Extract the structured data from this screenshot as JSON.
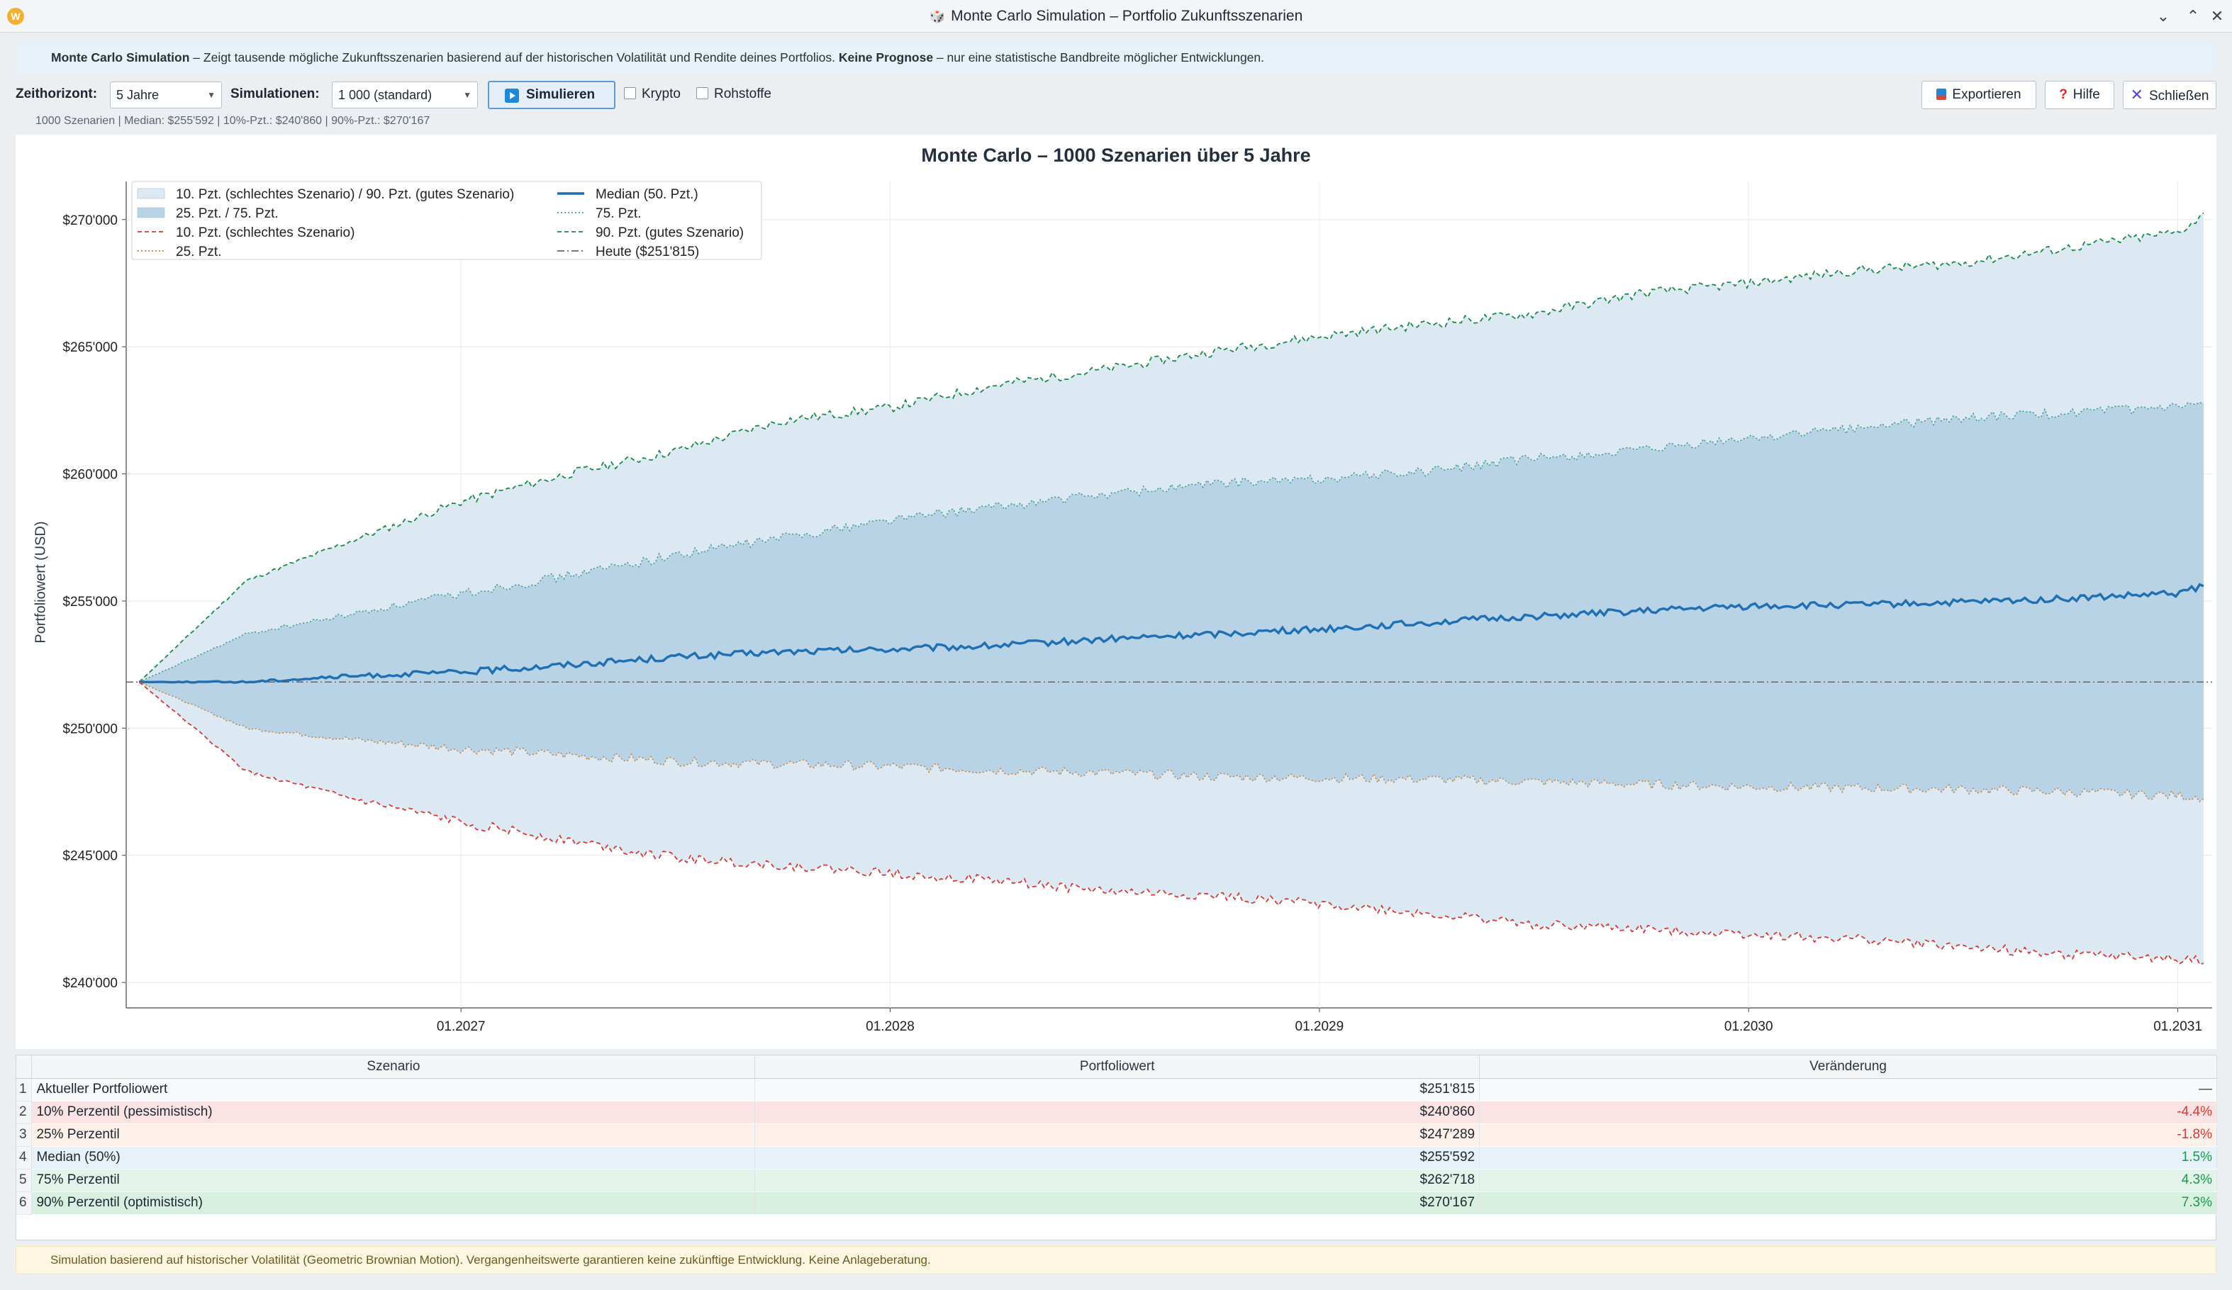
{
  "window": {
    "title": "Monte Carlo Simulation – Portfolio Zukunftsszenarien",
    "title_glyph": "🎲"
  },
  "infobar": {
    "bold1": "Monte Carlo Simulation",
    "text1": " – Zeigt tausende mögliche Zukunftsszenarien basierend auf der historischen Volatilität und Rendite deines Portfolios. ",
    "bold2": "Keine Prognose",
    "text2": " – nur eine statistische Bandbreite möglicher Entwicklungen."
  },
  "toolbar": {
    "horizon_label": "Zeithorizont:",
    "horizon_value": "5 Jahre",
    "sims_label": "Simulationen:",
    "sims_value": "1 000 (standard)",
    "simulate_label": "Simulieren",
    "crypto_label": "Krypto",
    "commodities_label": "Rohstoffe",
    "export_label": "Exportieren",
    "help_label": "Hilfe",
    "close_label": "Schließen"
  },
  "stats_line": "1000 Szenarien | Median: $255'592 | 10%-Pzt.: $240'860 | 90%-Pzt.: $270'167",
  "chart_data": {
    "type": "area",
    "title": "Monte Carlo – 1000 Szenarien über 5 Jahre",
    "xlabel": "",
    "ylabel": "Portfoliowert (USD)",
    "xlim": [
      2026.22,
      2031.08
    ],
    "ylim": [
      239000,
      271500
    ],
    "x_ticks": [
      {
        "value": 2027,
        "label": "01.2027"
      },
      {
        "value": 2028,
        "label": "01.2028"
      },
      {
        "value": 2029,
        "label": "01.2029"
      },
      {
        "value": 2030,
        "label": "01.2030"
      },
      {
        "value": 2031,
        "label": "01.2031"
      }
    ],
    "y_ticks": [
      {
        "value": 240000,
        "label": "$240'000"
      },
      {
        "value": 245000,
        "label": "$245'000"
      },
      {
        "value": 250000,
        "label": "$250'000"
      },
      {
        "value": 255000,
        "label": "$255'000"
      },
      {
        "value": 260000,
        "label": "$260'000"
      },
      {
        "value": 265000,
        "label": "$265'000"
      },
      {
        "value": 270000,
        "label": "$270'000"
      }
    ],
    "grid": true,
    "legend_position": "top-left",
    "today_value": 251815,
    "x": [
      2026.25,
      2026.5,
      2026.75,
      2027.0,
      2027.25,
      2027.5,
      2027.75,
      2028.0,
      2028.25,
      2028.5,
      2028.75,
      2029.0,
      2029.25,
      2029.5,
      2029.75,
      2030.0,
      2030.25,
      2030.5,
      2030.75,
      2031.0,
      2031.06
    ],
    "series": [
      {
        "name": "90. Pzt. (gutes Szenario)",
        "color": "#1a8a4a",
        "style": "dashed",
        "values": [
          251815,
          255800,
          257400,
          258900,
          260000,
          260900,
          262100,
          262600,
          263500,
          264100,
          264800,
          265400,
          265900,
          266300,
          267100,
          267500,
          268000,
          268300,
          268900,
          269500,
          270167
        ]
      },
      {
        "name": "75. Pzt.",
        "color": "#3a9e8a",
        "style": "dotted",
        "values": [
          251815,
          253700,
          254500,
          255300,
          256000,
          256800,
          257500,
          258200,
          258700,
          259200,
          259600,
          259800,
          260100,
          260600,
          260900,
          261400,
          261800,
          262200,
          262400,
          262600,
          262718
        ]
      },
      {
        "name": "Median (50. Pzt.)",
        "color": "#1f6fb4",
        "style": "solid",
        "values": [
          251815,
          251820,
          252050,
          252200,
          252500,
          252800,
          253000,
          253100,
          253250,
          253500,
          253700,
          253900,
          254150,
          254400,
          254600,
          254800,
          254850,
          254950,
          255100,
          255300,
          255592
        ]
      },
      {
        "name": "25. Pzt.",
        "color": "#c4833f",
        "style": "dotted",
        "values": [
          251815,
          250000,
          249550,
          249200,
          248950,
          248700,
          248600,
          248500,
          248350,
          248250,
          248100,
          248050,
          248000,
          247900,
          247800,
          247700,
          247650,
          247600,
          247500,
          247350,
          247289
        ]
      },
      {
        "name": "10. Pzt. (schlechtes Szenario)",
        "color": "#d43a36",
        "style": "dashed",
        "values": [
          251815,
          248300,
          247200,
          246300,
          245600,
          244900,
          244600,
          244300,
          244000,
          243600,
          243400,
          243100,
          242700,
          242300,
          242100,
          241900,
          241700,
          241400,
          241100,
          240900,
          240860
        ]
      }
    ],
    "bands": [
      {
        "name": "10. Pzt. (schlechtes Szenario) / 90. Pzt. (gutes Szenario)",
        "color": "#dde9f2"
      },
      {
        "name": "25. Pzt. / 75. Pzt.",
        "color": "#b8d2e6"
      }
    ],
    "legend": [
      {
        "label": "10. Pzt. (schlechtes Szenario) / 90. Pzt. (gutes Szenario)",
        "kind": "patch",
        "color": "#dde9f2"
      },
      {
        "label": "25. Pzt. / 75. Pzt.",
        "kind": "patch",
        "color": "#b8d2e6"
      },
      {
        "label": "10. Pzt. (schlechtes Szenario)",
        "kind": "line",
        "color": "#d43a36",
        "dash": "6 4"
      },
      {
        "label": "25. Pzt.",
        "kind": "line",
        "color": "#c4833f",
        "dash": "2 3"
      },
      {
        "label": "Median (50. Pzt.)",
        "kind": "line",
        "color": "#1f6fb4",
        "dash": ""
      },
      {
        "label": "75. Pzt.",
        "kind": "line",
        "color": "#3a9e8a",
        "dash": "2 3"
      },
      {
        "label": "90. Pzt. (gutes Szenario)",
        "kind": "line",
        "color": "#1a8a4a",
        "dash": "6 4"
      },
      {
        "label": "Heute ($251'815)",
        "kind": "line",
        "color": "#666666",
        "dash": "10 4 2 4"
      }
    ]
  },
  "table": {
    "headers": [
      "Szenario",
      "Portfoliowert",
      "Veränderung"
    ],
    "rows": [
      {
        "idx": "1",
        "name": "Aktueller Portfoliowert",
        "value": "$251'815",
        "change": "—",
        "bg": "#f7f9fb",
        "change_color": "#333333"
      },
      {
        "idx": "2",
        "name": "10% Perzentil (pessimistisch)",
        "value": "$240'860",
        "change": "-4.4%",
        "bg": "#fbe3e3",
        "change_color": "#d43a36"
      },
      {
        "idx": "3",
        "name": "25% Perzentil",
        "value": "$247'289",
        "change": "-1.8%",
        "bg": "#fdf0e8",
        "change_color": "#d43a36"
      },
      {
        "idx": "4",
        "name": "Median (50%)",
        "value": "$255'592",
        "change": "1.5%",
        "bg": "#e6f1f9",
        "change_color": "#1a9a4a"
      },
      {
        "idx": "5",
        "name": "75% Perzentil",
        "value": "$262'718",
        "change": "4.3%",
        "bg": "#e3f4ea",
        "change_color": "#1a9a4a"
      },
      {
        "idx": "6",
        "name": "90% Perzentil (optimistisch)",
        "value": "$270'167",
        "change": "7.3%",
        "bg": "#d7f0df",
        "change_color": "#1a9a4a"
      }
    ]
  },
  "footer": "Simulation basierend auf historischer Volatilität (Geometric Brownian Motion). Vergangenheitswerte garantieren keine zukünftige Entwicklung. Keine Anlageberatung."
}
